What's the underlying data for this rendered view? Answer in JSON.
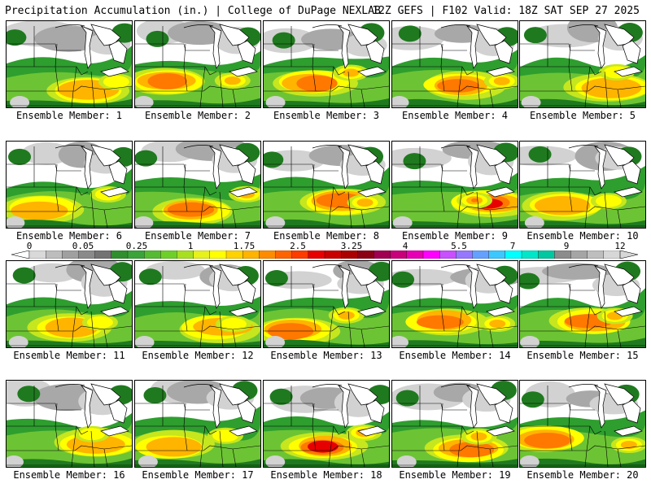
{
  "header": {
    "title_left": "Precipitation Accumulation (in.) | College of DuPage NEXLAB",
    "title_right": "12Z GEFS | F102 Valid: 18Z SAT SEP 27 2025"
  },
  "colorbar": {
    "tick_labels": [
      "0",
      "0.05",
      "0.25",
      "1",
      "1.75",
      "2.5",
      "3.25",
      "4",
      "5.5",
      "7",
      "9",
      "12"
    ],
    "colors": [
      "#d9d9d9",
      "#bdbdbd",
      "#a0a0a0",
      "#8a8a8a",
      "#737373",
      "#2f8f2f",
      "#3aa33a",
      "#55bb33",
      "#6fcf2a",
      "#a8e020",
      "#e6f21a",
      "#ffff00",
      "#ffd200",
      "#ffb400",
      "#ff8c00",
      "#ff6400",
      "#ff3c00",
      "#e60000",
      "#c80000",
      "#aa0000",
      "#8c0014",
      "#a00050",
      "#c8007a",
      "#e600b4",
      "#ff00ff",
      "#c850ff",
      "#9678ff",
      "#64a0ff",
      "#3cc8ff",
      "#00ffff",
      "#00e6c8",
      "#00c8a0",
      "#8c8c8c",
      "#a5a5a5",
      "#bebebe",
      "#d7d7d7"
    ]
  },
  "palette": {
    "light_gray": "#d2d2d2",
    "mid_gray": "#a8a8a8",
    "dark_gray": "#7e7e7e",
    "dark_green": "#1f7a1f",
    "green": "#2e9e2e",
    "light_green": "#6cc434",
    "yellow_green": "#c6e61e",
    "yellow": "#ffff00",
    "orange": "#ffb400",
    "dark_orange": "#ff7800",
    "red": "#e60000",
    "purple": "#9b2fae"
  },
  "members": [
    {
      "label": "Ensemble Member: 1",
      "max_band": 3
    },
    {
      "label": "Ensemble Member: 2",
      "max_band": 4
    },
    {
      "label": "Ensemble Member: 3",
      "max_band": 4
    },
    {
      "label": "Ensemble Member: 4",
      "max_band": 4
    },
    {
      "label": "Ensemble Member: 5",
      "max_band": 3
    },
    {
      "label": "Ensemble Member: 6",
      "max_band": 3
    },
    {
      "label": "Ensemble Member: 7",
      "max_band": 4
    },
    {
      "label": "Ensemble Member: 8",
      "max_band": 4
    },
    {
      "label": "Ensemble Member: 9",
      "max_band": 5
    },
    {
      "label": "Ensemble Member: 10",
      "max_band": 3
    },
    {
      "label": "Ensemble Member: 11",
      "max_band": 3
    },
    {
      "label": "Ensemble Member: 12",
      "max_band": 3
    },
    {
      "label": "Ensemble Member: 13",
      "max_band": 4
    },
    {
      "label": "Ensemble Member: 14",
      "max_band": 4
    },
    {
      "label": "Ensemble Member: 15",
      "max_band": 4
    },
    {
      "label": "Ensemble Member: 16",
      "max_band": 3
    },
    {
      "label": "Ensemble Member: 17",
      "max_band": 3
    },
    {
      "label": "Ensemble Member: 18",
      "max_band": 5
    },
    {
      "label": "Ensemble Member: 19",
      "max_band": 4
    },
    {
      "label": "Ensemble Member: 20",
      "max_band": 4
    }
  ]
}
